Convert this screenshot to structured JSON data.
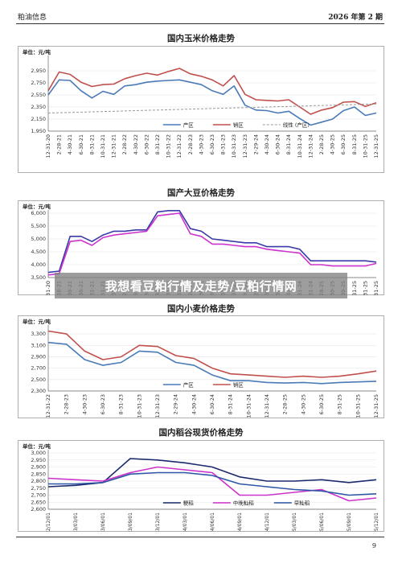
{
  "header": {
    "left": "粕油信息",
    "right": "2026 年第 2 期"
  },
  "page_number": "9",
  "overlay": {
    "text": "我想看豆粕行情及走势/豆粕行情网"
  },
  "chart_data": [
    {
      "type": "line",
      "title": "国内玉米价格走势",
      "unit_label": "单位：元/吨",
      "yticks": [
        "2,950",
        "2,750",
        "2,550",
        "2,350",
        "2,150",
        "1,950"
      ],
      "ylim": [
        1950,
        3150
      ],
      "categories": [
        "12-31-20",
        "2-28-21",
        "4-30-21",
        "6-30-21",
        "8-31-21",
        "10-31-21",
        "12-31-21",
        "2-28-22",
        "4-30-22",
        "6-30-22",
        "8-31-22",
        "10-31-22",
        "12-31-22",
        "2-28-23",
        "4-30-23",
        "6-30-23",
        "8-31-23",
        "10-31-23",
        "12-31-23",
        "2-29-24",
        "4-30-24",
        "6-30-24",
        "8-31-24",
        "10-31-24",
        "12-31-24",
        "2-28-25",
        "4-30-25",
        "6-30-25",
        "8-31-25",
        "10-31-25",
        "12-31-25"
      ],
      "series": [
        {
          "name": "产区",
          "color": "#4a7ab8",
          "dash": false,
          "values": [
            2550,
            2800,
            2790,
            2620,
            2500,
            2610,
            2560,
            2700,
            2720,
            2760,
            2780,
            2790,
            2800,
            2760,
            2720,
            2620,
            2560,
            2700,
            2380,
            2300,
            2290,
            2250,
            2280,
            2160,
            2050,
            2100,
            2150,
            2290,
            2350,
            2210,
            2250
          ]
        },
        {
          "name": "销区",
          "color": "#c0504d",
          "dash": false,
          "values": [
            2620,
            2930,
            2890,
            2760,
            2690,
            2720,
            2730,
            2820,
            2870,
            2910,
            2880,
            2940,
            2990,
            2900,
            2860,
            2800,
            2700,
            2870,
            2560,
            2470,
            2460,
            2450,
            2470,
            2350,
            2230,
            2300,
            2340,
            2430,
            2440,
            2360,
            2420
          ]
        },
        {
          "name": "线性 (产区)",
          "color": "#999999",
          "dash": true,
          "values": [
            2250,
            2255,
            2260,
            2265,
            2270,
            2275,
            2280,
            2285,
            2290,
            2295,
            2300,
            2305,
            2310,
            2315,
            2320,
            2325,
            2330,
            2335,
            2340,
            2345,
            2350,
            2355,
            2360,
            2365,
            2370,
            2375,
            2380,
            2385,
            2390,
            2395,
            2400
          ]
        }
      ]
    },
    {
      "type": "line",
      "title": "国产大豆价格走势",
      "unit_label": "单位：元/吨",
      "yticks": [
        "6,000",
        "5,500",
        "5,000",
        "4,500",
        "4,000",
        "3,500"
      ],
      "ylim": [
        3500,
        6000
      ],
      "categories": [
        "12-31-20",
        "2-28-21",
        "4-30-21",
        "6-30-21",
        "8-31-21",
        "10-31-21",
        "12-31-21",
        "2-28-22",
        "4-30-22",
        "6-30-22",
        "8-31-22",
        "10-31-22",
        "12-31-22",
        "2-28-23",
        "4-30-23",
        "6-30-23",
        "8-31-23",
        "10-31-23",
        "12-31-23",
        "2-29-24",
        "4-30-24",
        "6-30-24",
        "8-31-24",
        "10-31-24",
        "12-31-24",
        "2-28-25",
        "4-30-25",
        "6-30-25",
        "8-31-25",
        "10-31-25",
        "12-31-25"
      ],
      "series": [
        {
          "name": "",
          "color": "#3a3aa8",
          "dash": false,
          "values": [
            3700,
            3750,
            5100,
            5100,
            4900,
            5150,
            5300,
            5300,
            5350,
            5350,
            6050,
            6100,
            6100,
            5400,
            5300,
            5000,
            4950,
            4900,
            4850,
            4850,
            4700,
            4700,
            4700,
            4600,
            4150,
            4150,
            4150,
            4150,
            4150,
            4150,
            4100
          ]
        },
        {
          "name": "",
          "color": "#cc33cc",
          "dash": false,
          "values": [
            3600,
            3650,
            4900,
            4950,
            4750,
            5050,
            5150,
            5200,
            5250,
            5300,
            5900,
            5950,
            6000,
            5200,
            5100,
            4800,
            4800,
            4750,
            4700,
            4700,
            4600,
            4550,
            4500,
            4450,
            4000,
            4000,
            3950,
            3950,
            3950,
            3950,
            4050
          ]
        }
      ]
    },
    {
      "type": "line",
      "title": "国内小麦价格走势",
      "unit_label": "单位：元/吨",
      "yticks": [
        "3,300",
        "3,100",
        "2,900",
        "2,700",
        "2,500",
        "2,300"
      ],
      "ylim": [
        2300,
        3400
      ],
      "categories": [
        "12-31-22",
        "2-28-23",
        "4-30-23",
        "6-30-23",
        "8-31-23",
        "10-31-23",
        "12-31-23",
        "2-29-24",
        "4-30-24",
        "6-30-24",
        "8-31-24",
        "10-31-24",
        "12-31-24",
        "2-28-25",
        "4-30-25",
        "6-30-25",
        "8-31-25",
        "10-31-25",
        "12-31-25"
      ],
      "series": [
        {
          "name": "产区",
          "color": "#4a7ab8",
          "dash": false,
          "values": [
            3150,
            3120,
            2850,
            2750,
            2800,
            3000,
            2980,
            2800,
            2750,
            2580,
            2480,
            2480,
            2450,
            2440,
            2450,
            2430,
            2450,
            2460,
            2470
          ]
        },
        {
          "name": "销区",
          "color": "#c0504d",
          "dash": false,
          "values": [
            3350,
            3300,
            3000,
            2850,
            2900,
            3100,
            3080,
            2920,
            2870,
            2700,
            2600,
            2580,
            2560,
            2540,
            2560,
            2540,
            2560,
            2600,
            2650
          ]
        }
      ]
    },
    {
      "type": "line",
      "title": "国内稻谷现货价格走势",
      "unit_label": "单位：元/吨",
      "yticks": [
        "3,000",
        "2,950",
        "2,900",
        "2,850",
        "2,800",
        "2,750",
        "2,700",
        "2,650",
        "2,600"
      ],
      "ylim": [
        2600,
        3000
      ],
      "categories": [
        "22/12/01",
        "23/03/01",
        "23/06/01",
        "23/09/01",
        "23/12/01",
        "24/03/01",
        "24/06/01",
        "24/09/01",
        "24/12/01",
        "25/03/01",
        "25/06/01",
        "25/09/01",
        "25/12/01"
      ],
      "series": [
        {
          "name": "粳稻",
          "color": "#1a2a6c",
          "dash": false,
          "values": [
            2760,
            2770,
            2790,
            2960,
            2950,
            2930,
            2900,
            2830,
            2800,
            2800,
            2810,
            2790,
            2810
          ]
        },
        {
          "name": "中晚籼稻",
          "color": "#cc33cc",
          "dash": false,
          "values": [
            2820,
            2810,
            2800,
            2860,
            2900,
            2880,
            2860,
            2700,
            2700,
            2720,
            2740,
            2660,
            2680
          ]
        },
        {
          "name": "早籼稻",
          "color": "#2f56a6",
          "dash": false,
          "values": [
            2780,
            2780,
            2790,
            2850,
            2860,
            2860,
            2840,
            2780,
            2760,
            2740,
            2730,
            2700,
            2710
          ]
        }
      ]
    }
  ]
}
